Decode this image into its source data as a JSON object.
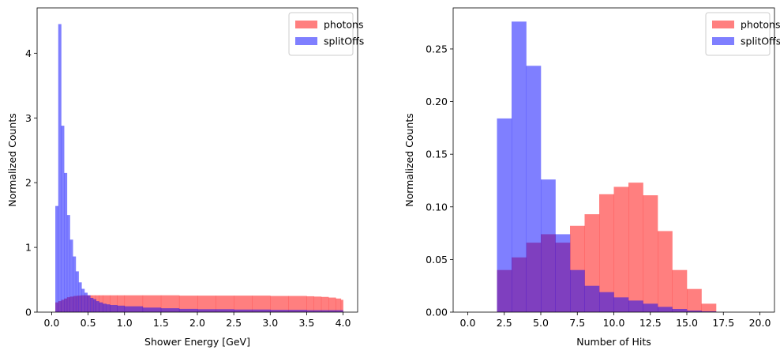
{
  "colors": {
    "photons": "#ff0000",
    "splitOffs": "#0000ff",
    "bar_opacity": 0.5
  },
  "chart_data": [
    {
      "type": "bar",
      "title": "",
      "xlabel": "Shower Energy [GeV]",
      "ylabel": "Normalized Counts",
      "xlim": [
        -0.2,
        4.2
      ],
      "ylim": [
        0,
        4.7
      ],
      "xticks": [
        0.0,
        0.5,
        1.0,
        1.5,
        2.0,
        2.5,
        3.0,
        3.5,
        4.0
      ],
      "xtick_labels": [
        "0.0",
        "0.5",
        "1.0",
        "1.5",
        "2.0",
        "2.5",
        "3.0",
        "3.5",
        "4.0"
      ],
      "yticks": [
        0,
        1,
        2,
        3,
        4
      ],
      "ytick_labels": [
        "0",
        "1",
        "2",
        "3",
        "4"
      ],
      "legend_position": "top-right",
      "series": [
        {
          "name": "photons",
          "edges": [
            0.05,
            0.09,
            0.13,
            0.17,
            0.21,
            0.25,
            0.3,
            0.35,
            0.4,
            0.45,
            0.5,
            0.55,
            0.6,
            0.65,
            0.7,
            0.8,
            0.9,
            1.0,
            1.25,
            1.5,
            1.75,
            2.0,
            2.25,
            2.5,
            2.75,
            3.0,
            3.25,
            3.5,
            3.6,
            3.7,
            3.8,
            3.9,
            3.97,
            4.0
          ],
          "values": [
            0.15,
            0.17,
            0.19,
            0.21,
            0.23,
            0.24,
            0.25,
            0.255,
            0.26,
            0.26,
            0.26,
            0.26,
            0.26,
            0.26,
            0.26,
            0.26,
            0.26,
            0.26,
            0.26,
            0.26,
            0.255,
            0.255,
            0.255,
            0.255,
            0.255,
            0.25,
            0.25,
            0.245,
            0.24,
            0.235,
            0.225,
            0.21,
            0.19
          ]
        },
        {
          "name": "splitOffs",
          "edges": [
            0.05,
            0.09,
            0.13,
            0.17,
            0.21,
            0.25,
            0.29,
            0.33,
            0.37,
            0.41,
            0.45,
            0.49,
            0.53,
            0.57,
            0.61,
            0.65,
            0.7,
            0.75,
            0.8,
            0.9,
            1.0,
            1.25,
            1.5,
            1.75,
            2.0,
            2.5,
            3.0,
            3.5,
            4.0
          ],
          "values": [
            1.64,
            4.45,
            2.88,
            2.15,
            1.5,
            1.12,
            0.86,
            0.63,
            0.46,
            0.36,
            0.3,
            0.26,
            0.22,
            0.2,
            0.17,
            0.15,
            0.13,
            0.12,
            0.11,
            0.1,
            0.09,
            0.07,
            0.06,
            0.05,
            0.045,
            0.04,
            0.035,
            0.03
          ]
        }
      ]
    },
    {
      "type": "bar",
      "title": "",
      "xlabel": "Number of Hits",
      "ylabel": "Normalized Counts",
      "xlim": [
        -1,
        21
      ],
      "ylim": [
        0,
        0.289
      ],
      "xticks": [
        0.0,
        2.5,
        5.0,
        7.5,
        10.0,
        12.5,
        15.0,
        17.5,
        20.0
      ],
      "xtick_labels": [
        "0.0",
        "2.5",
        "5.0",
        "7.5",
        "10.0",
        "12.5",
        "15.0",
        "17.5",
        "20.0"
      ],
      "yticks": [
        0.0,
        0.05,
        0.1,
        0.15,
        0.2,
        0.25
      ],
      "ytick_labels": [
        "0.00",
        "0.05",
        "0.10",
        "0.15",
        "0.20",
        "0.25"
      ],
      "legend_position": "top-right",
      "series": [
        {
          "name": "photons",
          "edges": [
            2,
            3,
            4,
            5,
            6,
            7,
            8,
            9,
            10,
            11,
            12,
            13,
            14,
            15,
            16,
            17
          ],
          "values": [
            0.04,
            0.052,
            0.066,
            0.074,
            0.066,
            0.082,
            0.093,
            0.112,
            0.119,
            0.123,
            0.111,
            0.077,
            0.04,
            0.022,
            0.008
          ]
        },
        {
          "name": "splitOffs",
          "edges": [
            2,
            3,
            4,
            5,
            6,
            7,
            8,
            9,
            10,
            11,
            12,
            13,
            14,
            15,
            16,
            17
          ],
          "values": [
            0.184,
            0.276,
            0.234,
            0.126,
            0.074,
            0.04,
            0.025,
            0.019,
            0.014,
            0.011,
            0.008,
            0.005,
            0.003,
            0.0015,
            0.0008
          ]
        }
      ]
    }
  ]
}
